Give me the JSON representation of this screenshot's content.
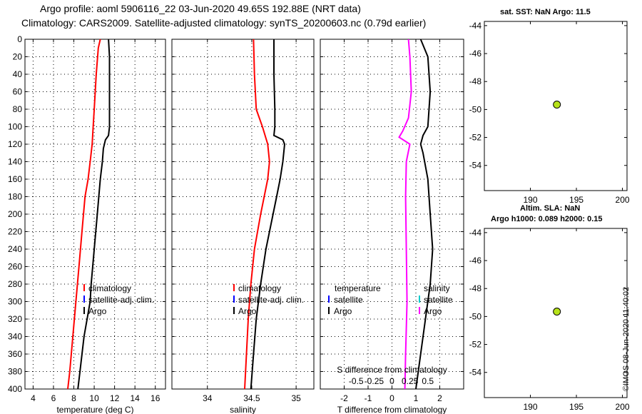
{
  "header": {
    "line1": "Argo profile: aoml 5906116_22 03-Jun-2020 49.65S 192.88E (NRT data)",
    "line2": "Climatology: CARS2009. Satellite-adjusted climatology: synTS_20200603.nc (0.79d earlier)"
  },
  "side": {
    "sst_title": "sat. SST: NaN Argo: 11.5",
    "sla_title1": "Altim. SLA: NaN",
    "sla_title2": "Argo h1000: 0.089 h2000: 0.15",
    "credit": "©IMOS 08-Jun-2020 11:40:02"
  },
  "colors": {
    "argo": "#000000",
    "climatology": "#ff0000",
    "satellite": "#0000ff",
    "salinity_diff": "#ff00ff",
    "satellite_salinity": "#00cccc",
    "marker": "#b7e31a"
  },
  "chart_data": [
    {
      "type": "line",
      "title": "",
      "xlabel": "temperature (deg C)",
      "ylabel": "",
      "xlim": [
        3.2,
        17
      ],
      "ylim": [
        400,
        0
      ],
      "xticks": [
        4,
        6,
        8,
        10,
        12,
        14,
        16
      ],
      "yticks": [
        0,
        20,
        40,
        60,
        80,
        100,
        120,
        140,
        160,
        180,
        200,
        220,
        240,
        260,
        280,
        300,
        320,
        340,
        360,
        380,
        400
      ],
      "grid": true,
      "legend": [
        {
          "label": "climatology",
          "color": "#ff0000"
        },
        {
          "label": "satellite-adj. clim.",
          "color": "#0000ff"
        },
        {
          "label": "Argo",
          "color": "#000000"
        }
      ],
      "series": [
        {
          "name": "climatology",
          "color": "#ff0000",
          "depth": [
            0,
            10,
            40,
            80,
            100,
            120,
            140,
            160,
            180,
            220,
            260,
            300,
            340,
            380,
            400
          ],
          "values": [
            10.6,
            10.4,
            10.2,
            10.0,
            9.9,
            9.8,
            9.6,
            9.4,
            9.1,
            8.8,
            8.5,
            8.2,
            7.9,
            7.6,
            7.4
          ]
        },
        {
          "name": "Argo",
          "color": "#000000",
          "depth": [
            0,
            20,
            60,
            100,
            110,
            115,
            125,
            140,
            160,
            200,
            240,
            280,
            300,
            340,
            380,
            400
          ],
          "values": [
            11.4,
            11.5,
            11.5,
            11.5,
            11.4,
            11.1,
            10.9,
            10.8,
            10.6,
            10.3,
            10.0,
            9.7,
            9.6,
            9.0,
            8.6,
            8.4
          ]
        }
      ]
    },
    {
      "type": "line",
      "xlabel": "salinity",
      "xlim": [
        33.6,
        35.2
      ],
      "ylim": [
        400,
        0
      ],
      "xticks": [
        34,
        34.5,
        35
      ],
      "xticklabels": [
        "34",
        "34.5",
        "35"
      ],
      "grid": true,
      "legend": [
        {
          "label": "climatology",
          "color": "#ff0000"
        },
        {
          "label": "satellite-adj. clim.",
          "color": "#0000ff"
        },
        {
          "label": "Argo",
          "color": "#000000"
        }
      ],
      "series": [
        {
          "name": "climatology",
          "color": "#ff0000",
          "depth": [
            0,
            40,
            80,
            100,
            120,
            140,
            160,
            200,
            240,
            280,
            320,
            360,
            400
          ],
          "values": [
            34.52,
            34.53,
            34.55,
            34.62,
            34.68,
            34.7,
            34.68,
            34.6,
            34.53,
            34.49,
            34.46,
            34.44,
            34.42
          ]
        },
        {
          "name": "Argo",
          "color": "#000000",
          "depth": [
            0,
            40,
            80,
            100,
            110,
            115,
            120,
            140,
            160,
            180,
            200,
            240,
            280,
            320,
            360,
            400
          ],
          "values": [
            34.75,
            34.75,
            34.76,
            34.76,
            34.75,
            34.85,
            34.87,
            34.85,
            34.82,
            34.78,
            34.74,
            34.66,
            34.6,
            34.55,
            34.52,
            34.49
          ]
        }
      ]
    },
    {
      "type": "line",
      "xlabel": "T difference from climatology",
      "top_axis_label": "S difference from climatology",
      "xlim": [
        -3,
        3
      ],
      "ylim": [
        400,
        0
      ],
      "xticks": [
        -2,
        -1,
        0,
        1,
        2
      ],
      "xticklabels": [
        "-2",
        "-1",
        "0",
        "1",
        "2"
      ],
      "s_xticks": [
        -0.5,
        -0.25,
        0,
        0.25,
        0.5
      ],
      "s_xticklabels": [
        "-0.5",
        "-0.25",
        "0",
        "0.25",
        "0.5"
      ],
      "grid": true,
      "legend_temperature": {
        "heading": "temperature",
        "items": [
          {
            "label": "satellite",
            "color": "#0000ff"
          },
          {
            "label": "Argo",
            "color": "#000000"
          }
        ]
      },
      "legend_salinity": {
        "heading": "salinity",
        "items": [
          {
            "label": "satellite",
            "color": "#00cccc"
          },
          {
            "label": "Argo",
            "color": "#ff00ff"
          }
        ]
      },
      "series": [
        {
          "name": "T difference (Argo)",
          "color": "#000000",
          "depth": [
            0,
            20,
            60,
            100,
            110,
            120,
            130,
            160,
            200,
            240,
            280,
            320,
            360,
            400
          ],
          "values": [
            1.2,
            1.5,
            1.6,
            1.5,
            1.3,
            1.2,
            1.3,
            1.5,
            1.6,
            1.7,
            1.6,
            1.4,
            1.2,
            1.0
          ]
        },
        {
          "name": "S difference (Argo)",
          "color": "#ff00ff",
          "depth": [
            0,
            20,
            60,
            90,
            105,
            112,
            120,
            140,
            180,
            240,
            300,
            360,
            400
          ],
          "values": [
            0.23,
            0.25,
            0.27,
            0.23,
            0.15,
            0.1,
            0.25,
            0.2,
            0.19,
            0.2,
            0.21,
            0.19,
            0.18
          ]
        }
      ]
    },
    {
      "type": "scatter",
      "title": "sat. SST: NaN Argo: 11.5",
      "xlim": [
        185,
        200.5
      ],
      "ylim": [
        -55.8,
        -43.7
      ],
      "xticks": [
        190,
        195,
        200
      ],
      "yticks": [
        -44,
        -46,
        -48,
        -50,
        -52,
        -54
      ],
      "points": [
        {
          "x": 192.88,
          "y": -49.65
        }
      ]
    },
    {
      "type": "scatter",
      "title": "Altim. SLA: NaN",
      "xlim": [
        185,
        200.5
      ],
      "ylim": [
        -55.8,
        -43.7
      ],
      "xticks": [
        190,
        195,
        200
      ],
      "yticks": [
        -44,
        -46,
        -48,
        -50,
        -52,
        -54
      ],
      "points": [
        {
          "x": 192.88,
          "y": -49.65
        }
      ]
    }
  ]
}
